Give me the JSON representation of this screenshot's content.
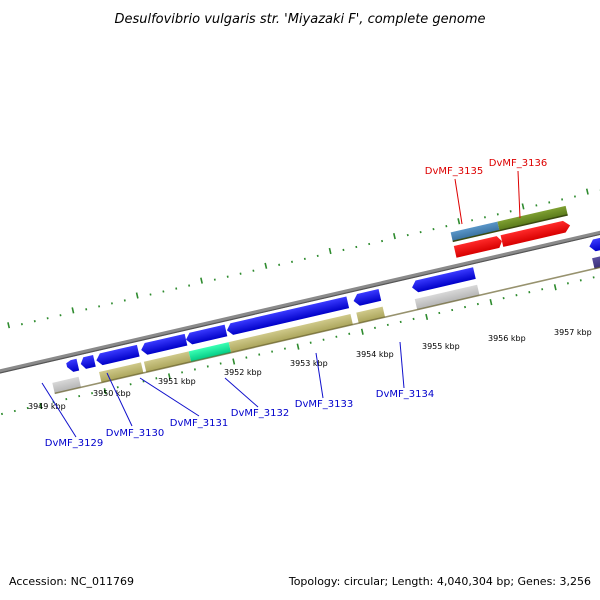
{
  "title": "Desulfovibrio vulgaris str. 'Miyazaki F', complete genome",
  "footer": {
    "accession": "Accession: NC_011769",
    "summary": "Topology: circular; Length: 4,040,304 bp; Genes: 3,256"
  },
  "scale_labels": [
    "3949 kbp",
    "3950 kbp",
    "3951 kbp",
    "3952 kbp",
    "3953 kbp",
    "3954 kbp",
    "3955 kbp",
    "3956 kbp",
    "3957 kbp"
  ],
  "gene_labels_inner": [
    "DvMF_3129",
    "DvMF_3130",
    "DvMF_3131",
    "DvMF_3132",
    "DvMF_3133",
    "DvMF_3134"
  ],
  "gene_labels_outer": [
    "DvMF_3135",
    "DvMF_3136"
  ],
  "colors": {
    "background": "#ffffff",
    "backbone": "#808080",
    "tick": "#2e8b2e",
    "forward_gene": "#ee0000",
    "forward_label": "#dd0000",
    "reverse_gene": "#0000ee",
    "reverse_label": "#0000cc",
    "category_khaki": "#bdb76b",
    "category_steelblue": "#4682b4",
    "category_olive": "#6b8e23",
    "category_gray": "#c8c8c8",
    "category_spring": "#00e59a",
    "category_slate": "#483d8b",
    "text": "#000000"
  }
}
